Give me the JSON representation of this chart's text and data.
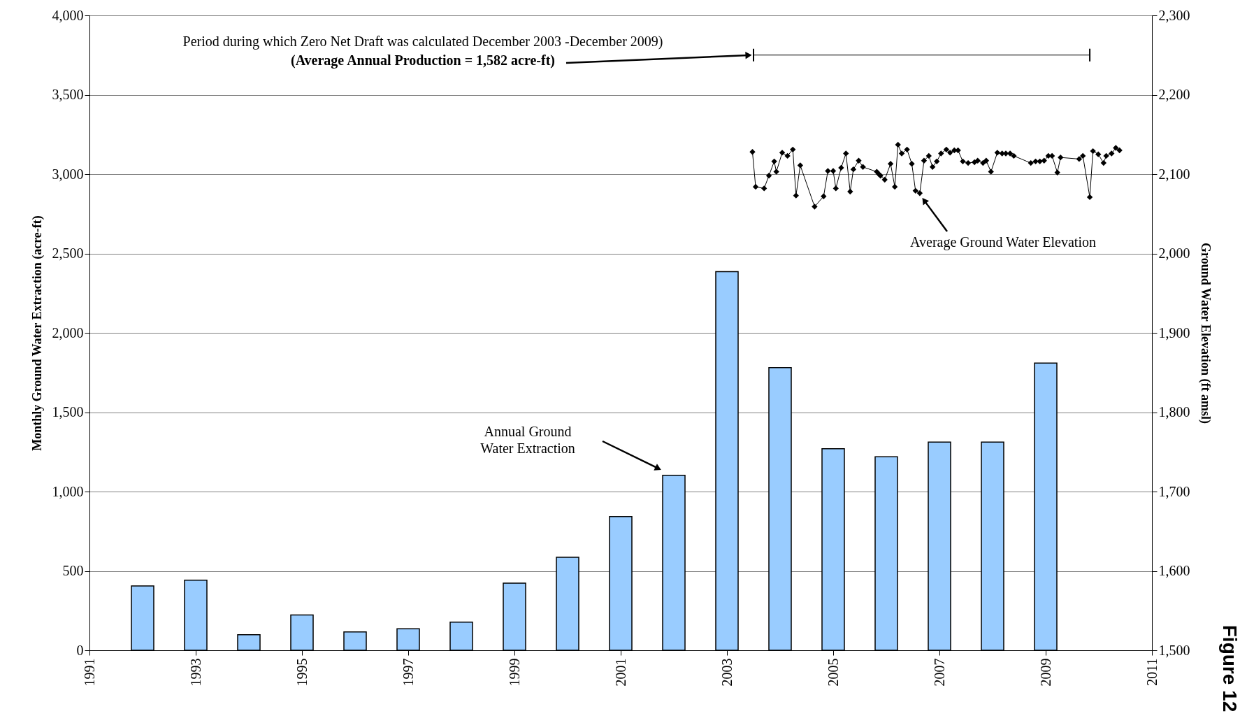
{
  "chart_data": {
    "type": "bar",
    "xlabel": null,
    "ylabel": "Monthly Ground Water Extraction (acre-ft)",
    "y2label": "Ground Water Elevation (ft amsl)",
    "x": [
      1992,
      1993,
      1994,
      1995,
      1996,
      1997,
      1998,
      1999,
      2000,
      2001,
      2002,
      2003,
      2004,
      2005,
      2006,
      2007,
      2008,
      2009
    ],
    "series": [
      {
        "type": "bar",
        "color": "#99ccff",
        "values": [
          405,
          442,
          98,
          223,
          116,
          135,
          177,
          423,
          586,
          842,
          1102,
          2386,
          1781,
          1270,
          1219,
          1312,
          1312,
          1809
        ]
      },
      {
        "type": "line",
        "axis": "y2",
        "color": "#000000",
        "marker": "diamond",
        "x": [
          2003.48,
          2003.54,
          2003.7,
          2003.79,
          2003.89,
          2003.93,
          2004.04,
          2004.14,
          2004.24,
          2004.3,
          2004.38,
          2004.65,
          2004.82,
          2004.9,
          2005.0,
          2005.05,
          2005.15,
          2005.24,
          2005.32,
          2005.38,
          2005.48,
          2005.56,
          2005.82,
          2005.86,
          2005.89,
          2005.97,
          2006.08,
          2006.16,
          2006.22,
          2006.29,
          2006.39,
          2006.48,
          2006.55,
          2006.63,
          2006.71,
          2006.8,
          2006.87,
          2006.95,
          2007.03,
          2007.13,
          2007.2,
          2007.28,
          2007.35,
          2007.44,
          2007.54,
          2007.66,
          2007.72,
          2007.82,
          2007.88,
          2007.97,
          2008.09,
          2008.18,
          2008.25,
          2008.33,
          2008.4,
          2008.72,
          2008.81,
          2008.89,
          2008.97,
          2009.05,
          2009.12,
          2009.22,
          2009.28,
          2009.63,
          2009.7,
          2009.83,
          2009.89,
          2009.99,
          2010.09,
          2010.14,
          2010.24,
          2010.32,
          2010.39
        ],
        "values": [
          2128,
          2084,
          2082,
          2098,
          2116,
          2103,
          2127,
          2123,
          2131,
          2073,
          2111,
          2059,
          2072,
          2104,
          2104,
          2082,
          2108,
          2126,
          2078,
          2106,
          2117,
          2109,
          2103,
          2100,
          2098,
          2093,
          2113,
          2084,
          2137,
          2126,
          2131,
          2113,
          2079,
          2076,
          2117,
          2123,
          2109,
          2116,
          2126,
          2131,
          2127,
          2130,
          2130,
          2116,
          2114,
          2115,
          2117,
          2114,
          2117,
          2103,
          2127,
          2126,
          2126,
          2126,
          2123,
          2114,
          2116,
          2116,
          2117,
          2123,
          2123,
          2102,
          2121,
          2119,
          2123,
          2071,
          2129,
          2125,
          2114,
          2123,
          2126,
          2133,
          2130
        ]
      },
      {
        "type": "line",
        "color": "#000000",
        "marker": "none",
        "x": [
          2003.5,
          2009.83
        ],
        "values": [
          3750,
          3750
        ],
        "errors": [
          40,
          40
        ]
      }
    ],
    "xlim": [
      1991,
      2011
    ],
    "xticks": [
      1991,
      1993,
      1995,
      1997,
      1999,
      2001,
      2003,
      2005,
      2007,
      2009,
      2011
    ],
    "ylim": [
      0,
      4000
    ],
    "yticks": [
      0,
      500,
      {
        "value": 1000,
        "label": "1,000"
      },
      {
        "value": 1500,
        "label": "1,500"
      },
      {
        "value": 2000,
        "label": "2,000"
      },
      {
        "value": 2500,
        "label": "2,500"
      },
      {
        "value": 3000,
        "label": "3,000"
      },
      {
        "value": 3500,
        "label": "3,500"
      },
      {
        "value": 4000,
        "label": "4,000"
      }
    ],
    "y2lim": [
      1500,
      2300
    ],
    "y2ticks": [
      {
        "value": 1500,
        "label": "1,500"
      },
      {
        "value": 1600,
        "label": "1,600"
      },
      {
        "value": 1700,
        "label": "1,700"
      },
      {
        "value": 1800,
        "label": "1,800"
      },
      {
        "value": 1900,
        "label": "1,900"
      },
      {
        "value": 2000,
        "label": "2,000"
      },
      {
        "value": 2100,
        "label": "2,100"
      },
      {
        "value": 2200,
        "label": "2,200"
      },
      {
        "value": 2300,
        "label": "2,300"
      }
    ],
    "grid": "y",
    "annotations": [
      "Period during which Zero Net Draft was calculated December 2003 -December 2009)",
      {
        "text": "(Average Annual Production = 1,582 acre-ft)",
        "x": 2003.5,
        "y": 3750
      },
      "Annual Ground Water Extraction",
      "Average Ground Water Elevation",
      "Figure 12"
    ]
  }
}
